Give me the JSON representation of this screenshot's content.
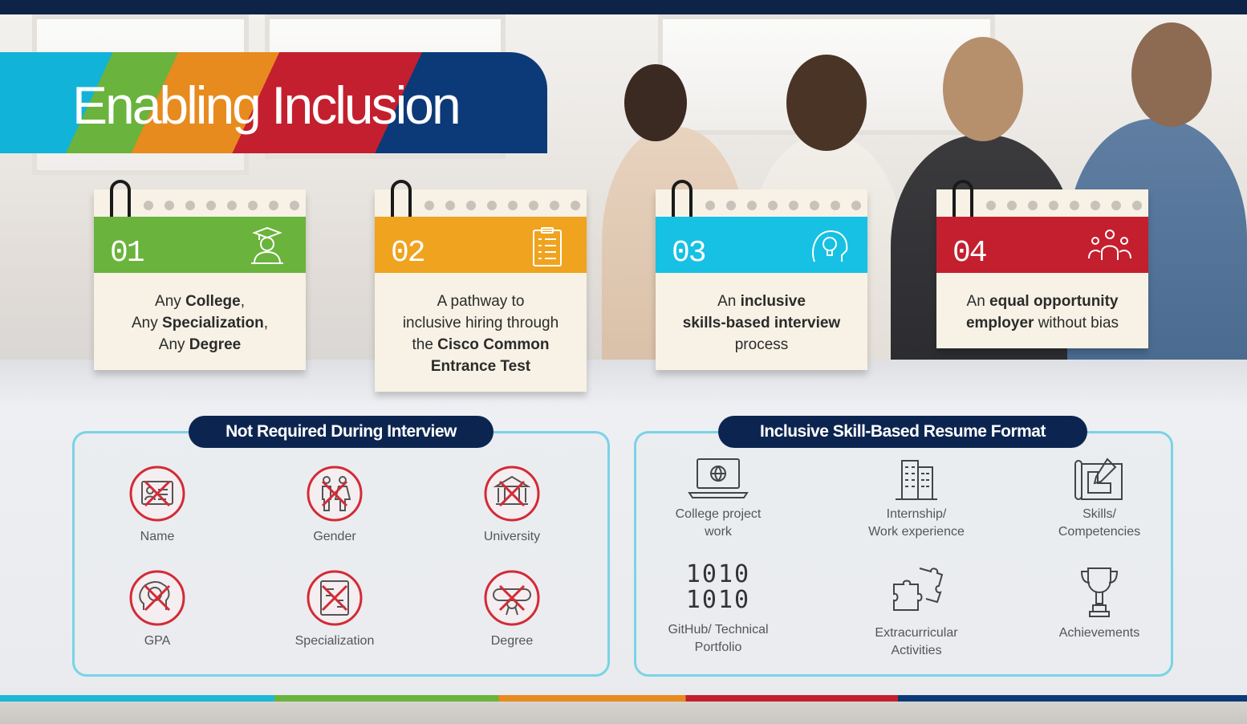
{
  "title": "Enabling Inclusion",
  "colors": {
    "green": "#6ab33c",
    "orange": "#efa31f",
    "cyan": "#16c1e3",
    "red": "#c41f2f",
    "navy": "#0c2550",
    "panel_border": "#7ad3e6",
    "cross": "#d32b36"
  },
  "cards": [
    {
      "number": "01",
      "icon": "graduate-icon",
      "color": "#6ab33c",
      "lines": [
        [
          {
            "t": "Any ",
            "b": false
          },
          {
            "t": "College",
            "b": true
          },
          {
            "t": ",",
            "b": false
          }
        ],
        [
          {
            "t": "Any ",
            "b": false
          },
          {
            "t": "Specialization",
            "b": true
          },
          {
            "t": ",",
            "b": false
          }
        ],
        [
          {
            "t": "Any ",
            "b": false
          },
          {
            "t": "Degree",
            "b": true
          }
        ]
      ]
    },
    {
      "number": "02",
      "icon": "clipboard-icon",
      "color": "#efa31f",
      "lines": [
        [
          {
            "t": "A pathway to",
            "b": false
          }
        ],
        [
          {
            "t": "inclusive hiring through",
            "b": false
          }
        ],
        [
          {
            "t": "the ",
            "b": false
          },
          {
            "t": "Cisco Common",
            "b": true
          }
        ],
        [
          {
            "t": "Entrance Test",
            "b": true
          }
        ]
      ]
    },
    {
      "number": "03",
      "icon": "lightbulb-head-icon",
      "color": "#16c1e3",
      "lines": [
        [
          {
            "t": "An ",
            "b": false
          },
          {
            "t": "inclusive",
            "b": true
          }
        ],
        [
          {
            "t": "skills-based interview",
            "b": true
          }
        ],
        [
          {
            "t": "process",
            "b": false
          }
        ]
      ]
    },
    {
      "number": "04",
      "icon": "people-icon",
      "color": "#c41f2f",
      "lines": [
        [
          {
            "t": "An ",
            "b": false
          },
          {
            "t": "equal opportunity",
            "b": true
          }
        ],
        [
          {
            "t": "employer",
            "b": true
          },
          {
            "t": " without bias",
            "b": false
          }
        ]
      ]
    }
  ],
  "not_required": {
    "title": "Not Required During Interview",
    "items": [
      {
        "label": "Name",
        "icon": "id-card-crossed-icon"
      },
      {
        "label": "Gender",
        "icon": "gender-crossed-icon"
      },
      {
        "label": "University",
        "icon": "university-crossed-icon"
      },
      {
        "label": "GPA",
        "icon": "brain-crossed-icon"
      },
      {
        "label": "Specialization",
        "icon": "specialization-crossed-icon"
      },
      {
        "label": "Degree",
        "icon": "diploma-crossed-icon"
      }
    ]
  },
  "resume_format": {
    "title": "Inclusive Skill-Based Resume Format",
    "items": [
      {
        "label1": "College project",
        "label2": "work",
        "icon": "laptop-globe-icon"
      },
      {
        "label1": "Internship/",
        "label2": "Work experience",
        "icon": "office-building-icon"
      },
      {
        "label1": "Skills/",
        "label2": "Competencies",
        "icon": "blueprint-icon"
      },
      {
        "label1": "GitHub/ Technical",
        "label2": "Portfolio",
        "icon": "binary-code-icon",
        "code1": "1010",
        "code2": "1010"
      },
      {
        "label1": "Extracurricular",
        "label2": "Activities",
        "icon": "puzzle-icon"
      },
      {
        "label1": "Achievements",
        "label2": "",
        "icon": "trophy-icon"
      }
    ]
  }
}
